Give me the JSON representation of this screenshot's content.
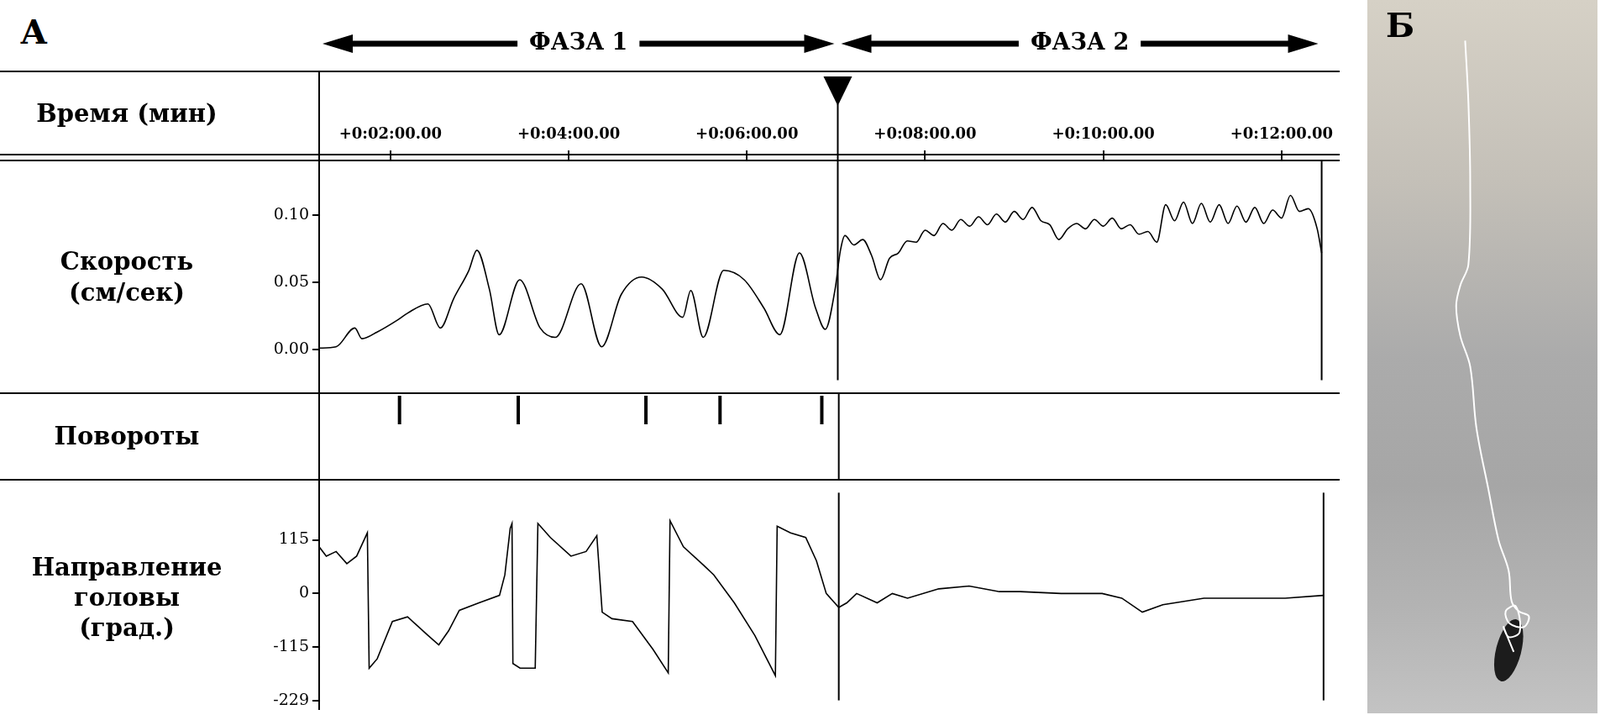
{
  "chart_data": [
    {
      "panel": "А",
      "type": "line",
      "x_label": "Время (мин)",
      "y_label": "Скорость (см/сек)",
      "color": "#000000",
      "grid": false,
      "x": [
        1.2,
        1.39,
        1.6,
        1.68,
        1.85,
        2.08,
        2.19,
        2.42,
        2.56,
        2.71,
        2.88,
        2.97,
        3.11,
        3.22,
        3.45,
        3.68,
        3.85,
        4.14,
        4.37,
        4.59,
        4.82,
        5.05,
        5.28,
        5.37,
        5.51,
        5.74,
        5.97,
        6.19,
        6.37,
        6.59,
        6.77,
        6.88,
        6.99,
        7.05,
        7.1,
        7.2,
        7.3,
        7.4,
        7.5,
        7.6,
        7.7,
        7.8,
        7.9,
        8.0,
        8.1,
        8.2,
        8.3,
        8.4,
        8.5,
        8.6,
        8.7,
        8.8,
        8.9,
        9.0,
        9.1,
        9.2,
        9.3,
        9.4,
        9.5,
        9.6,
        9.7,
        9.8,
        9.9,
        10.0,
        10.1,
        10.2,
        10.3,
        10.4,
        10.5,
        10.6,
        10.7,
        10.8,
        10.9,
        11.0,
        11.1,
        11.2,
        11.3,
        11.4,
        11.5,
        11.6,
        11.7,
        11.8,
        11.9,
        12.0,
        12.1,
        12.2,
        12.3,
        12.4,
        12.45
      ],
      "values": [
        0.001,
        0.002,
        0.016,
        0.008,
        0.013,
        0.022,
        0.027,
        0.034,
        0.016,
        0.038,
        0.059,
        0.074,
        0.045,
        0.011,
        0.052,
        0.016,
        0.009,
        0.049,
        0.002,
        0.041,
        0.054,
        0.045,
        0.024,
        0.044,
        0.009,
        0.059,
        0.052,
        0.031,
        0.011,
        0.072,
        0.031,
        0.015,
        0.045,
        0.074,
        0.085,
        0.078,
        0.082,
        0.07,
        0.052,
        0.068,
        0.072,
        0.081,
        0.08,
        0.089,
        0.085,
        0.094,
        0.089,
        0.097,
        0.092,
        0.099,
        0.093,
        0.101,
        0.095,
        0.103,
        0.097,
        0.106,
        0.096,
        0.093,
        0.082,
        0.09,
        0.094,
        0.09,
        0.097,
        0.092,
        0.098,
        0.09,
        0.093,
        0.086,
        0.088,
        0.08,
        0.108,
        0.096,
        0.11,
        0.094,
        0.109,
        0.095,
        0.108,
        0.094,
        0.107,
        0.095,
        0.106,
        0.094,
        0.104,
        0.098,
        0.115,
        0.103,
        0.105,
        0.09,
        0.072
      ],
      "xlim": [
        1.2,
        12.63
      ],
      "xticks": [
        {
          "value": 2,
          "label": "+0:02:00.00"
        },
        {
          "value": 4,
          "label": "+0:04:00.00"
        },
        {
          "value": 6,
          "label": "+0:06:00.00"
        },
        {
          "value": 8,
          "label": "+0:08:00.00"
        },
        {
          "value": 10,
          "label": "+0:10:00.00"
        },
        {
          "value": 12,
          "label": "+0:12:00.00"
        }
      ],
      "ylim": [
        -0.023,
        0.141
      ],
      "yticks": [
        {
          "value": 0,
          "label": "0.00"
        },
        0.05,
        {
          "value": 0.1,
          "label": "0.10"
        }
      ],
      "annotations": [
        {
          "label": "ФАЗА 1",
          "from": 1.2,
          "to": 7.02
        },
        {
          "label": "ФАЗА 2",
          "from": 7.02,
          "to": 12.45
        }
      ]
    },
    {
      "panel": "А",
      "type": "event",
      "y_label": "Повороты",
      "color": "#000000",
      "tick_labels": false,
      "x": [
        2.1,
        3.43,
        4.86,
        5.69,
        6.83
      ],
      "xlim": [
        1.2,
        12.63
      ]
    },
    {
      "panel": "А",
      "type": "line",
      "y_label": "Направление головы (град.)",
      "color": "#000000",
      "grid": false,
      "tick_labels": "y",
      "x": [
        1.2,
        1.28,
        1.39,
        1.51,
        1.62,
        1.74,
        1.76,
        1.85,
        2.02,
        2.19,
        2.42,
        2.54,
        2.65,
        2.77,
        2.99,
        3.22,
        3.28,
        3.34,
        3.36,
        3.37,
        3.45,
        3.62,
        3.65,
        3.79,
        4.02,
        4.19,
        4.31,
        4.37,
        4.48,
        4.71,
        4.94,
        5.11,
        5.13,
        5.28,
        5.51,
        5.62,
        5.85,
        6.08,
        6.31,
        6.33,
        6.48,
        6.65,
        6.77,
        6.88,
        7.02,
        7.11,
        7.22,
        7.45,
        7.62,
        7.79,
        8.14,
        8.48,
        8.82,
        9.05,
        9.51,
        9.97,
        10.19,
        10.42,
        10.65,
        11.11,
        11.57,
        12.02,
        12.45
      ],
      "values": [
        100,
        80,
        90,
        64,
        80,
        130,
        -160,
        -140,
        -60,
        -50,
        -90,
        -110,
        -80,
        -36,
        -20,
        -4,
        40,
        140,
        150,
        -150,
        -160,
        -160,
        150,
        120,
        80,
        90,
        124,
        -40,
        -54,
        -60,
        -120,
        -170,
        156,
        100,
        60,
        40,
        -20,
        -90,
        -176,
        144,
        130,
        120,
        70,
        0,
        -30,
        -20,
        0,
        -20,
        0,
        -10,
        10,
        16,
        4,
        4,
        0,
        0,
        -10,
        -40,
        -24,
        -10,
        -10,
        -10,
        -4
      ],
      "xlim": [
        1.2,
        12.63
      ],
      "ylim": [
        -229,
        216
      ],
      "yticks": [
        115,
        0,
        -115,
        -229
      ]
    },
    {
      "panel": "Б",
      "type": "line",
      "color": "#ffffff",
      "tick_labels": false,
      "x": [
        42.5,
        43.9,
        44.7,
        43.9,
        40.4,
        38.6,
        40.4,
        44.7,
        47.4,
        52.6,
        57,
        61.4,
        62.7,
        65.8,
        70.2,
        68,
        61.8,
        60.1,
        64.5,
        66.2,
        61.4,
        59.2,
        63.6
      ],
      "values": [
        94.3,
        85.7,
        74.3,
        62.9,
        60,
        57.1,
        52.9,
        48.6,
        40,
        31.4,
        24.3,
        20,
        15.7,
        14.3,
        13.6,
        12.1,
        12.6,
        14.3,
        15,
        11.4,
        10.7,
        12.1,
        8.6
      ],
      "xlim": [
        0,
        100
      ],
      "ylim": [
        0,
        100
      ]
    }
  ]
}
